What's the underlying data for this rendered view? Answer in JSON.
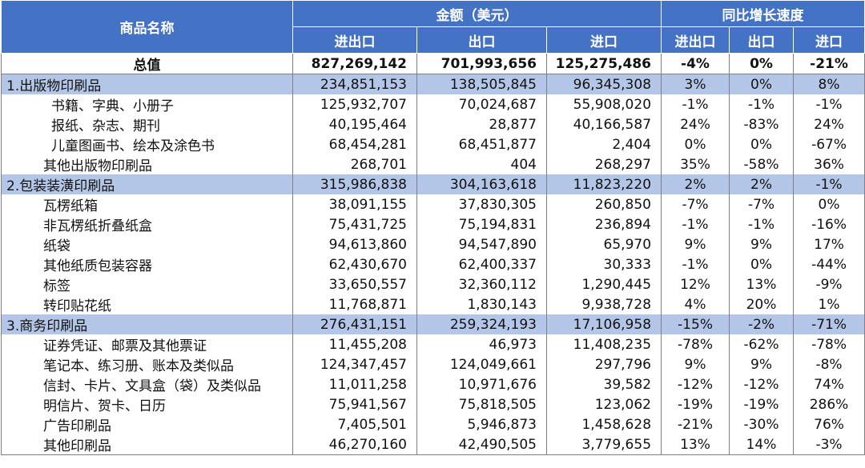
{
  "header": {
    "name_col": "商品名称",
    "amount_group": "金额（美元）",
    "growth_group": "同比增长速度",
    "sub": [
      "进出口",
      "出口",
      "进口",
      "进出口",
      "出口",
      "进口"
    ]
  },
  "rows": [
    {
      "type": "total",
      "name": "总值",
      "v": [
        "827,269,142",
        "701,993,656",
        "125,275,486",
        "-4%",
        "0%",
        "-21%"
      ]
    },
    {
      "type": "cat",
      "name": "1.出版物印刷品",
      "v": [
        "234,851,153",
        "138,505,845",
        "96,345,308",
        "3%",
        "0%",
        "8%"
      ]
    },
    {
      "type": "item deep",
      "name": "书籍、字典、小册子",
      "v": [
        "125,932,707",
        "70,024,687",
        "55,908,020",
        "-1%",
        "-1%",
        "-1%"
      ]
    },
    {
      "type": "item deep",
      "name": "报纸、杂志、期刊",
      "v": [
        "40,195,464",
        "28,877",
        "40,166,587",
        "24%",
        "-83%",
        "24%"
      ]
    },
    {
      "type": "item deep",
      "name": "儿童图画书、绘本及涂色书",
      "v": [
        "68,454,281",
        "68,451,877",
        "2,404",
        "0%",
        "0%",
        "-67%"
      ]
    },
    {
      "type": "item",
      "name": "其他出版物印刷品",
      "v": [
        "268,701",
        "404",
        "268,297",
        "35%",
        "-58%",
        "36%"
      ]
    },
    {
      "type": "cat",
      "name": "2.包装装潢印刷品",
      "v": [
        "315,986,838",
        "304,163,618",
        "11,823,220",
        "2%",
        "2%",
        "-1%"
      ]
    },
    {
      "type": "item",
      "name": "瓦楞纸箱",
      "v": [
        "38,091,155",
        "37,830,305",
        "260,850",
        "-7%",
        "-7%",
        "0%"
      ]
    },
    {
      "type": "item",
      "name": "非瓦楞纸折叠纸盒",
      "v": [
        "75,431,725",
        "75,194,831",
        "236,894",
        "-1%",
        "-1%",
        "-16%"
      ]
    },
    {
      "type": "item",
      "name": "纸袋",
      "v": [
        "94,613,860",
        "94,547,890",
        "65,970",
        "9%",
        "9%",
        "17%"
      ]
    },
    {
      "type": "item",
      "name": "其他纸质包装容器",
      "v": [
        "62,430,670",
        "62,400,337",
        "30,333",
        "-1%",
        "0%",
        "-44%"
      ]
    },
    {
      "type": "item",
      "name": "标签",
      "v": [
        "33,650,557",
        "32,360,112",
        "1,290,445",
        "12%",
        "13%",
        "-9%"
      ]
    },
    {
      "type": "item",
      "name": "转印贴花纸",
      "v": [
        "11,768,871",
        "1,830,143",
        "9,938,728",
        "4%",
        "20%",
        "1%"
      ]
    },
    {
      "type": "cat",
      "name": "3.商务印刷品",
      "v": [
        "276,431,151",
        "259,324,193",
        "17,106,958",
        "-15%",
        "-2%",
        "-71%"
      ]
    },
    {
      "type": "item",
      "name": "证券凭证、邮票及其他票证",
      "v": [
        "11,455,208",
        "46,973",
        "11,408,235",
        "-78%",
        "-62%",
        "-78%"
      ]
    },
    {
      "type": "item",
      "name": "笔记本、练习册、账本及类似品",
      "v": [
        "124,347,457",
        "124,049,661",
        "297,796",
        "9%",
        "9%",
        "-8%"
      ]
    },
    {
      "type": "item",
      "name": "信封、卡片、文具盒（袋）及类似品",
      "v": [
        "11,011,258",
        "10,971,676",
        "39,582",
        "-12%",
        "-12%",
        "74%"
      ]
    },
    {
      "type": "item",
      "name": "明信片、贺卡、日历",
      "v": [
        "75,941,567",
        "75,818,505",
        "123,062",
        "-19%",
        "-19%",
        "286%"
      ]
    },
    {
      "type": "item",
      "name": "广告印刷品",
      "v": [
        "7,405,501",
        "5,946,873",
        "1,458,628",
        "-21%",
        "-30%",
        "76%"
      ]
    },
    {
      "type": "item",
      "name": "其他印刷品",
      "v": [
        "46,270,160",
        "42,490,505",
        "3,779,655",
        "13%",
        "14%",
        "-3%"
      ]
    }
  ]
}
